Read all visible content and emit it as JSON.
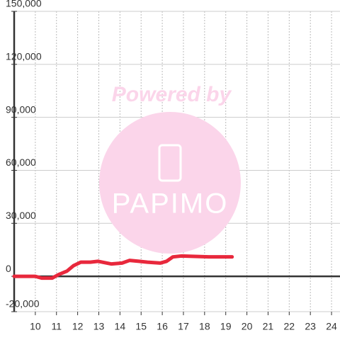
{
  "chart_data": {
    "type": "line",
    "watermark": {
      "title": "Powered by",
      "brand": "PAPIMO"
    },
    "x": [
      9.0,
      10.0,
      10.3,
      10.8,
      11.1,
      11.5,
      11.8,
      12.15,
      12.6,
      12.97,
      13.6,
      14.1,
      14.45,
      14.9,
      15.3,
      15.9,
      16.2,
      16.5,
      16.9,
      18.2,
      19.3
    ],
    "series": [
      {
        "color": "#e8283c",
        "values": [
          0,
          0,
          -1000,
          -1000,
          1000,
          3000,
          6000,
          8000,
          8000,
          8500,
          7000,
          7500,
          9000,
          8500,
          8000,
          7500,
          8500,
          11000,
          11500,
          11000,
          11000
        ]
      }
    ],
    "xlim": [
      9,
      24.4
    ],
    "xticks": [
      10,
      11,
      12,
      13,
      14,
      15,
      16,
      17,
      18,
      19,
      20,
      21,
      22,
      23,
      24
    ],
    "ylim": [
      -20000,
      150000
    ],
    "yticks": [
      {
        "value": -20000,
        "label": "-20,000"
      },
      0,
      {
        "value": 30000,
        "label": "30,000"
      },
      {
        "value": 60000,
        "label": "60,000"
      },
      {
        "value": 90000,
        "label": "90,000"
      },
      {
        "value": 120000,
        "label": "120,000"
      },
      {
        "value": 150000,
        "label": "150,000"
      }
    ],
    "grid": true
  }
}
